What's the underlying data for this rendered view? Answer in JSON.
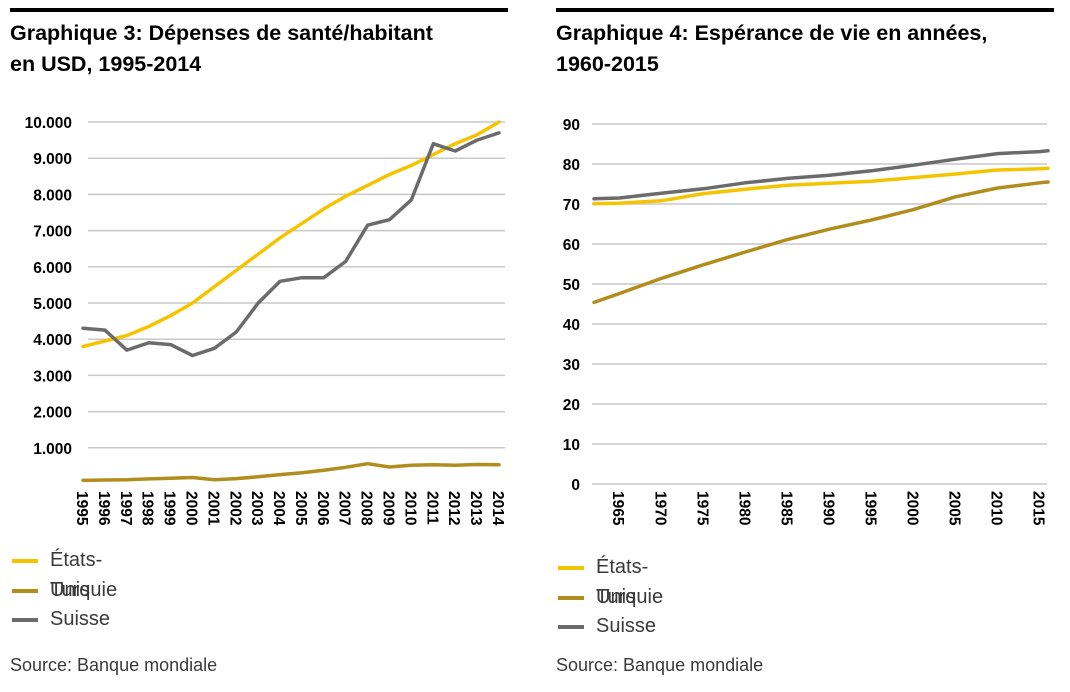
{
  "left": {
    "title_line1": "Graphique 3: Dépenses de santé/habitant",
    "title_line2": "en USD, 1995-2014",
    "legend": [
      "États-Unis",
      "Turquie",
      "Suisse"
    ],
    "source": "Source: Banque mondiale"
  },
  "right": {
    "title_line1": "Graphique 4: Espérance de vie en années,",
    "title_line2": "1960-2015",
    "legend": [
      "États-Unis",
      "Turquie",
      "Suisse"
    ],
    "source": "Source: Banque mondiale"
  },
  "colors": {
    "etats_unis": "#f5c400",
    "turquie": "#b08d1c",
    "suisse": "#6b6b6b",
    "grid": "#c8c8c8"
  },
  "chart_data": [
    {
      "type": "line",
      "title": "Graphique 3: Dépenses de santé/habitant en USD, 1995-2014",
      "xlabel": "",
      "ylabel": "",
      "ylim": [
        0,
        10000
      ],
      "grid": true,
      "legend_position": "bottom-left",
      "x": [
        1995,
        1996,
        1997,
        1998,
        1999,
        2000,
        2001,
        2002,
        2003,
        2004,
        2005,
        2006,
        2007,
        2008,
        2009,
        2010,
        2011,
        2012,
        2013,
        2014
      ],
      "x_tick_labels": [
        "1995",
        "1996",
        "1997",
        "1998",
        "1999",
        "2000",
        "2001",
        "2002",
        "2003",
        "2004",
        "2005",
        "2006",
        "2007",
        "2008",
        "2009",
        "2010",
        "2011",
        "2012",
        "2013",
        "2014"
      ],
      "y_ticks": [
        1000,
        2000,
        3000,
        4000,
        5000,
        6000,
        7000,
        8000,
        9000,
        10000
      ],
      "y_tick_labels": [
        "1.000",
        "2.000",
        "3.000",
        "4.000",
        "5.000",
        "6.000",
        "7.000",
        "8.000",
        "9.000",
        "10.000"
      ],
      "series": [
        {
          "name": "États-Unis",
          "color": "#f5c400",
          "values": [
            3800,
            3950,
            4100,
            4350,
            4650,
            5000,
            5450,
            5900,
            6350,
            6800,
            7200,
            7600,
            7950,
            8250,
            8550,
            8800,
            9100,
            9400,
            9650,
            10000
          ]
        },
        {
          "name": "Turquie",
          "color": "#b08d1c",
          "values": [
            100,
            110,
            120,
            140,
            160,
            180,
            120,
            150,
            200,
            260,
            310,
            380,
            460,
            560,
            470,
            520,
            530,
            520,
            540,
            530
          ]
        },
        {
          "name": "Suisse",
          "color": "#6b6b6b",
          "values": [
            4300,
            4250,
            3700,
            3900,
            3850,
            3550,
            3750,
            4200,
            5000,
            5600,
            5700,
            5700,
            6150,
            7150,
            7300,
            7850,
            9400,
            9200,
            9500,
            9700
          ]
        }
      ]
    },
    {
      "type": "line",
      "title": "Graphique 4: Espérance de vie en années, 1960-2015",
      "xlabel": "",
      "ylabel": "",
      "ylim": [
        0,
        90
      ],
      "grid": true,
      "legend_position": "bottom-left",
      "x": [
        1962,
        1965,
        1970,
        1975,
        1980,
        1985,
        1990,
        1995,
        2000,
        2005,
        2010,
        2015,
        2016
      ],
      "x_ticks": [
        1965,
        1970,
        1975,
        1980,
        1985,
        1990,
        1995,
        2000,
        2005,
        2010,
        2015
      ],
      "x_tick_labels": [
        "1965",
        "1970",
        "1975",
        "1980",
        "1985",
        "1990",
        "1995",
        "2000",
        "2005",
        "2010",
        "2015"
      ],
      "y_ticks": [
        0,
        10,
        20,
        30,
        40,
        50,
        60,
        70,
        80,
        90
      ],
      "y_tick_labels": [
        "0",
        "10",
        "20",
        "30",
        "40",
        "50",
        "60",
        "70",
        "80",
        "90"
      ],
      "series": [
        {
          "name": "États-Unis",
          "color": "#f5c400",
          "values": [
            70.1,
            70.2,
            70.8,
            72.6,
            73.7,
            74.7,
            75.2,
            75.7,
            76.6,
            77.5,
            78.5,
            78.8,
            78.9
          ]
        },
        {
          "name": "Turquie",
          "color": "#b08d1c",
          "values": [
            45.4,
            47.6,
            51.4,
            54.8,
            58.0,
            61.1,
            63.7,
            66.0,
            68.6,
            71.8,
            74.0,
            75.3,
            75.5
          ]
        },
        {
          "name": "Suisse",
          "color": "#6b6b6b",
          "values": [
            71.3,
            71.5,
            72.7,
            73.8,
            75.3,
            76.4,
            77.2,
            78.3,
            79.7,
            81.2,
            82.6,
            83.1,
            83.3
          ]
        }
      ]
    }
  ]
}
